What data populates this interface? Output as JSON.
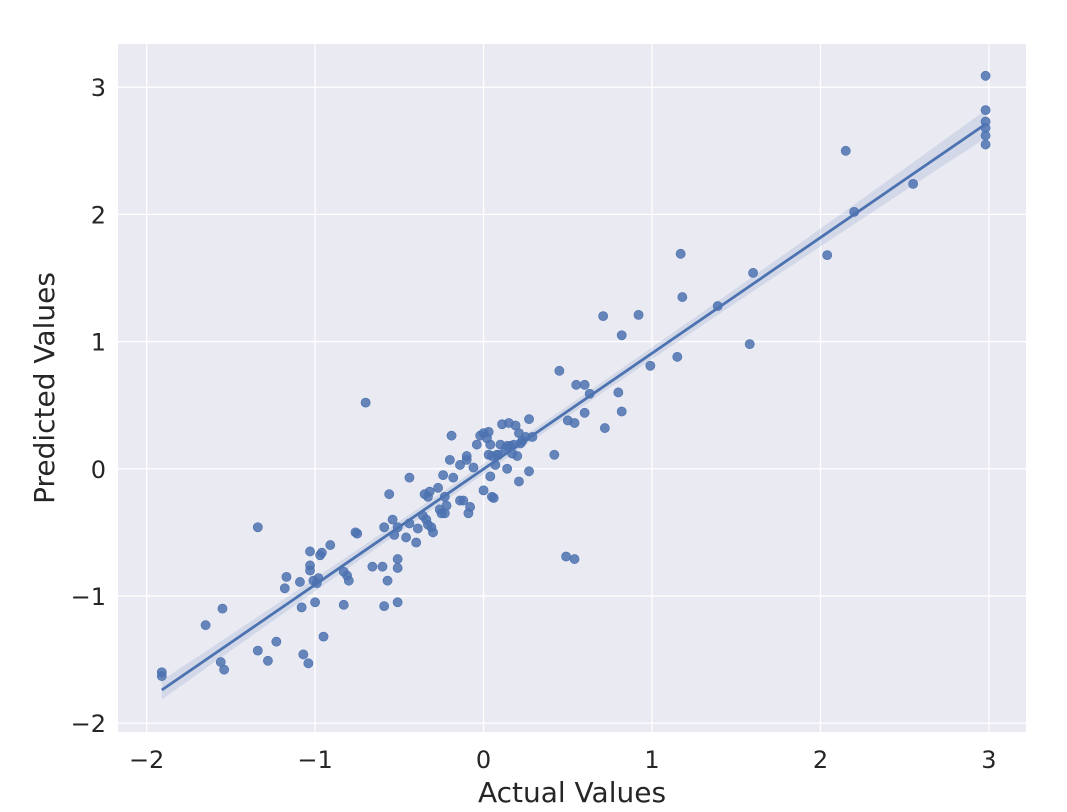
{
  "chart_data": {
    "type": "scatter",
    "title": "",
    "xlabel": "Actual Values",
    "ylabel": "Predicted Values",
    "xlim": [
      -2.17,
      3.22
    ],
    "ylim": [
      -2.07,
      3.34
    ],
    "xticks": [
      -2,
      -1,
      0,
      1,
      2,
      3
    ],
    "yticks": [
      -2,
      -1,
      0,
      1,
      2,
      3
    ],
    "xtick_labels": [
      "−2",
      "−1",
      "0",
      "1",
      "2",
      "3"
    ],
    "ytick_labels": [
      "−2",
      "−1",
      "0",
      "1",
      "2",
      "3"
    ],
    "grid": true,
    "legend": false,
    "colors": {
      "background": "#eaeaf2",
      "grid": "#ffffff",
      "point": "#4c72b0",
      "line": "#4c72b0",
      "band": "#4c72b0"
    },
    "regression": {
      "x_start": -1.91,
      "y_start": -1.74,
      "x_end": 2.98,
      "y_end": 2.71,
      "ci_halfwidth_ends": 0.11,
      "ci_halfwidth_center": 0.04,
      "x_center": 0.12
    },
    "points": [
      [
        -1.91,
        -1.6
      ],
      [
        -1.91,
        -1.63
      ],
      [
        -1.65,
        -1.23
      ],
      [
        -1.55,
        -1.1
      ],
      [
        -1.56,
        -1.52
      ],
      [
        -1.54,
        -1.58
      ],
      [
        -1.34,
        -0.46
      ],
      [
        -1.34,
        -1.43
      ],
      [
        -1.28,
        -1.51
      ],
      [
        -1.23,
        -1.36
      ],
      [
        -1.18,
        -0.94
      ],
      [
        -1.17,
        -0.85
      ],
      [
        -1.09,
        -0.89
      ],
      [
        -1.08,
        -1.09
      ],
      [
        -1.07,
        -1.46
      ],
      [
        -1.04,
        -1.53
      ],
      [
        -1.03,
        -0.65
      ],
      [
        -1.03,
        -0.76
      ],
      [
        -1.03,
        -0.8
      ],
      [
        -1.01,
        -0.88
      ],
      [
        -1.0,
        -1.05
      ],
      [
        -0.99,
        -0.9
      ],
      [
        -0.98,
        -0.86
      ],
      [
        -0.96,
        -0.66
      ],
      [
        -0.97,
        -0.68
      ],
      [
        -0.95,
        -1.32
      ],
      [
        -0.91,
        -0.6
      ],
      [
        -0.83,
        -0.81
      ],
      [
        -0.83,
        -1.07
      ],
      [
        -0.81,
        -0.84
      ],
      [
        -0.8,
        -0.88
      ],
      [
        -0.76,
        -0.5
      ],
      [
        -0.75,
        -0.51
      ],
      [
        -0.7,
        0.52
      ],
      [
        -0.66,
        -0.77
      ],
      [
        -0.6,
        -0.77
      ],
      [
        -0.59,
        -0.46
      ],
      [
        -0.59,
        -1.08
      ],
      [
        -0.57,
        -0.88
      ],
      [
        -0.56,
        -0.2
      ],
      [
        -0.54,
        -0.4
      ],
      [
        -0.53,
        -0.52
      ],
      [
        -0.51,
        -0.46
      ],
      [
        -0.51,
        -0.71
      ],
      [
        -0.51,
        -0.78
      ],
      [
        -0.51,
        -1.05
      ],
      [
        -0.46,
        -0.54
      ],
      [
        -0.44,
        -0.43
      ],
      [
        -0.44,
        -0.07
      ],
      [
        -0.4,
        -0.58
      ],
      [
        -0.39,
        -0.47
      ],
      [
        -0.36,
        -0.37
      ],
      [
        -0.35,
        -0.2
      ],
      [
        -0.34,
        -0.4
      ],
      [
        -0.33,
        -0.22
      ],
      [
        -0.33,
        -0.44
      ],
      [
        -0.32,
        -0.18
      ],
      [
        -0.31,
        -0.46
      ],
      [
        -0.3,
        -0.5
      ],
      [
        -0.27,
        -0.15
      ],
      [
        -0.26,
        -0.32
      ],
      [
        -0.25,
        -0.35
      ],
      [
        -0.24,
        -0.05
      ],
      [
        -0.23,
        -0.22
      ],
      [
        -0.23,
        -0.35
      ],
      [
        -0.22,
        -0.29
      ],
      [
        -0.2,
        0.07
      ],
      [
        -0.19,
        0.26
      ],
      [
        -0.18,
        -0.07
      ],
      [
        -0.14,
        0.03
      ],
      [
        -0.14,
        -0.25
      ],
      [
        -0.12,
        -0.25
      ],
      [
        -0.1,
        0.07
      ],
      [
        -0.1,
        0.1
      ],
      [
        -0.09,
        -0.35
      ],
      [
        -0.08,
        -0.3
      ],
      [
        -0.06,
        0.01
      ],
      [
        -0.04,
        0.19
      ],
      [
        -0.02,
        0.26
      ],
      [
        0.0,
        0.28
      ],
      [
        0.0,
        -0.17
      ],
      [
        0.02,
        0.24
      ],
      [
        0.03,
        0.29
      ],
      [
        0.03,
        0.11
      ],
      [
        0.04,
        -0.06
      ],
      [
        0.04,
        0.19
      ],
      [
        0.05,
        -0.22
      ],
      [
        0.05,
        0.1
      ],
      [
        0.06,
        -0.23
      ],
      [
        0.07,
        0.03
      ],
      [
        0.08,
        0.11
      ],
      [
        0.09,
        0.11
      ],
      [
        0.1,
        0.19
      ],
      [
        0.11,
        0.35
      ],
      [
        0.13,
        0.16
      ],
      [
        0.14,
        0.0
      ],
      [
        0.14,
        0.18
      ],
      [
        0.15,
        0.36
      ],
      [
        0.16,
        0.18
      ],
      [
        0.17,
        0.12
      ],
      [
        0.18,
        0.19
      ],
      [
        0.19,
        0.34
      ],
      [
        0.2,
        0.1
      ],
      [
        0.21,
        0.28
      ],
      [
        0.21,
        -0.1
      ],
      [
        0.22,
        0.2
      ],
      [
        0.23,
        0.22
      ],
      [
        0.25,
        0.25
      ],
      [
        0.27,
        0.39
      ],
      [
        0.27,
        -0.02
      ],
      [
        0.29,
        0.25
      ],
      [
        0.42,
        0.11
      ],
      [
        0.45,
        0.77
      ],
      [
        0.49,
        -0.69
      ],
      [
        0.5,
        0.38
      ],
      [
        0.54,
        0.36
      ],
      [
        0.54,
        -0.71
      ],
      [
        0.55,
        0.66
      ],
      [
        0.6,
        0.66
      ],
      [
        0.6,
        0.44
      ],
      [
        0.63,
        0.59
      ],
      [
        0.71,
        1.2
      ],
      [
        0.72,
        0.32
      ],
      [
        0.8,
        0.6
      ],
      [
        0.82,
        1.05
      ],
      [
        0.82,
        0.45
      ],
      [
        0.92,
        1.21
      ],
      [
        0.99,
        0.81
      ],
      [
        1.15,
        0.88
      ],
      [
        1.17,
        1.69
      ],
      [
        1.18,
        1.35
      ],
      [
        1.39,
        1.28
      ],
      [
        1.58,
        0.98
      ],
      [
        1.6,
        1.54
      ],
      [
        2.04,
        1.68
      ],
      [
        2.15,
        2.5
      ],
      [
        2.2,
        2.02
      ],
      [
        2.55,
        2.24
      ],
      [
        2.98,
        3.09
      ],
      [
        2.98,
        2.82
      ],
      [
        2.98,
        2.73
      ],
      [
        2.98,
        2.68
      ],
      [
        2.98,
        2.62
      ],
      [
        2.98,
        2.55
      ]
    ]
  }
}
